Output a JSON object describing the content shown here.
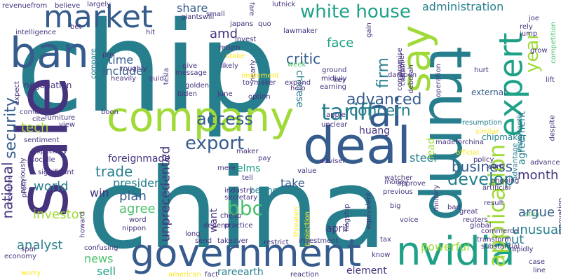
{
  "colors": {
    "background": "#ffffff",
    "palette": [
      "#440154",
      "#46337e",
      "#365c8d",
      "#277f8e",
      "#1fa187",
      "#4ac16d",
      "#a0da39",
      "#fde725"
    ]
  },
  "words": [
    {
      "text": "chip",
      "color": "#277f8e",
      "vertical": false
    },
    {
      "text": "china",
      "color": "#277f8e",
      "vertical": false
    },
    {
      "text": "sale",
      "color": "#46337e",
      "vertical": true
    },
    {
      "text": "trump",
      "color": "#277f8e",
      "vertical": true
    },
    {
      "text": "company",
      "color": "#a0da39",
      "vertical": false
    },
    {
      "text": "government",
      "color": "#365c8d",
      "vertical": false
    },
    {
      "text": "deal",
      "color": "#365c8d",
      "vertical": false
    },
    {
      "text": "nvidia",
      "color": "#1fa187",
      "vertical": false
    },
    {
      "text": "ban",
      "color": "#365c8d",
      "vertical": false
    },
    {
      "text": "market",
      "color": "#365c8d",
      "vertical": false
    },
    {
      "text": "say",
      "color": "#a0da39",
      "vertical": true
    },
    {
      "text": "ai",
      "color": "#365c8d",
      "vertical": false
    },
    {
      "text": "expert",
      "color": "#1fa187",
      "vertical": true
    },
    {
      "text": "application",
      "color": "#a0da39",
      "vertical": true
    },
    {
      "text": "white house",
      "color": "#1fa187",
      "vertical": false
    },
    {
      "text": "tariff",
      "color": "#277f8e",
      "vertical": false
    },
    {
      "text": "develop",
      "color": "#277f8e",
      "vertical": false
    },
    {
      "text": "security",
      "color": "#365c8d",
      "vertical": true
    },
    {
      "text": "national",
      "color": "#46337e",
      "vertical": true
    },
    {
      "text": "export",
      "color": "#365c8d",
      "vertical": false
    },
    {
      "text": "access",
      "color": "#365c8d",
      "vertical": false
    },
    {
      "text": "advanced",
      "color": "#365c8d",
      "vertical": false
    },
    {
      "text": "concern",
      "color": "#277f8e",
      "vertical": false
    },
    {
      "text": "firm",
      "color": "#277f8e",
      "vertical": true
    },
    {
      "text": "bbc",
      "color": "#4ac16d",
      "vertical": false
    },
    {
      "text": "business",
      "color": "#365c8d",
      "vertical": false
    },
    {
      "text": "year",
      "color": "#a0da39",
      "vertical": true
    },
    {
      "text": "unprecedented",
      "color": "#46337e",
      "vertical": true
    },
    {
      "text": "critic",
      "color": "#365c8d",
      "vertical": false
    },
    {
      "text": "trade",
      "color": "#277f8e",
      "vertical": false
    },
    {
      "text": "administration",
      "color": "#277f8e",
      "vertical": false
    },
    {
      "text": "amd",
      "color": "#46337e",
      "vertical": false
    },
    {
      "text": "share",
      "color": "#365c8d",
      "vertical": false
    },
    {
      "text": "plan",
      "color": "#365c8d",
      "vertical": false
    },
    {
      "text": "agree",
      "color": "#4ac16d",
      "vertical": false
    },
    {
      "text": "argue",
      "color": "#365c8d",
      "vertical": false
    },
    {
      "text": "unusual",
      "color": "#277f8e",
      "vertical": false
    },
    {
      "text": "analyst",
      "color": "#277f8e",
      "vertical": false
    },
    {
      "text": "month",
      "color": "#46337e",
      "vertical": false
    },
    {
      "text": "agreement",
      "color": "#277f8e",
      "vertical": true
    },
    {
      "text": "cut",
      "color": "#277f8e",
      "vertical": false
    },
    {
      "text": "world",
      "color": "#277f8e",
      "vertical": false
    },
    {
      "text": "investor",
      "color": "#a0da39",
      "vertical": false
    },
    {
      "text": "tech",
      "color": "#a0da39",
      "vertical": false
    },
    {
      "text": "face",
      "color": "#1fa187",
      "vertical": false
    },
    {
      "text": "chinese",
      "color": "#277f8e",
      "vertical": true
    },
    {
      "text": "time",
      "color": "#365c8d",
      "vertical": false
    },
    {
      "text": "include",
      "color": "#365c8d",
      "vertical": false
    },
    {
      "text": "steel",
      "color": "#277f8e",
      "vertical": false
    },
    {
      "text": "take",
      "color": "#365c8d",
      "vertical": false
    },
    {
      "text": "president",
      "color": "#277f8e",
      "vertical": false
    },
    {
      "text": "news",
      "color": "#4ac16d",
      "vertical": false
    },
    {
      "text": "sell",
      "color": "#1fa187",
      "vertical": false
    },
    {
      "text": "powerful",
      "color": "#a0da39",
      "vertical": false
    },
    {
      "text": "lead",
      "color": "#a0da39",
      "vertical": true
    },
    {
      "text": "win",
      "color": "#46337e",
      "vertical": false
    },
    {
      "text": "rareearth",
      "color": "#277f8e",
      "vertical": false
    },
    {
      "text": "element",
      "color": "#46337e",
      "vertical": false
    },
    {
      "text": "elms",
      "color": "#1fa187",
      "vertical": false
    },
    {
      "text": "want",
      "color": "#46337e",
      "vertical": true
    },
    {
      "text": "huang",
      "color": "#46337e",
      "vertical": false
    },
    {
      "text": "april",
      "color": "#46337e",
      "vertical": false
    },
    {
      "text": "foreignmade",
      "color": "#46337e",
      "vertical": false
    },
    {
      "text": "negotiation",
      "color": "#46337e",
      "vertical": false
    },
    {
      "text": "beijing",
      "color": "#277f8e",
      "vertical": false
    },
    {
      "text": "external",
      "color": "#365c8d",
      "vertical": false
    },
    {
      "text": "chipmaker",
      "color": "#277f8e",
      "vertical": false
    },
    {
      "text": "resumption",
      "color": "#277f8e",
      "vertical": false
    },
    {
      "text": "madeforchina",
      "color": "#46337e",
      "vertical": false
    },
    {
      "text": "advantage",
      "color": "#277f8e",
      "vertical": true
    },
    {
      "text": "importantly",
      "color": "#277f8e",
      "vertical": true
    },
    {
      "text": "revenuefrom",
      "color": "#46337e",
      "vertical": false
    },
    {
      "text": "believe",
      "color": "#46337e",
      "vertical": false
    },
    {
      "text": "largely",
      "color": "#46337e",
      "vertical": false
    },
    {
      "text": "intelligence",
      "color": "#46337e",
      "vertical": false
    },
    {
      "text": "giantswill",
      "color": "#46337e",
      "vertical": false
    },
    {
      "text": "japans",
      "color": "#46337e",
      "vertical": false
    },
    {
      "text": "lawmaker",
      "color": "#46337e",
      "vertical": false
    },
    {
      "text": "lutnick",
      "color": "#46337e",
      "vertical": false
    },
    {
      "text": "small",
      "color": "#46337e",
      "vertical": false
    },
    {
      "text": "fare",
      "color": "#46337e",
      "vertical": true
    },
    {
      "text": "quo",
      "color": "#46337e",
      "vertical": false
    },
    {
      "text": "joe",
      "color": "#46337e",
      "vertical": false
    },
    {
      "text": "rely",
      "color": "#46337e",
      "vertical": false
    },
    {
      "text": "jump",
      "color": "#46337e",
      "vertical": false
    },
    {
      "text": "competition",
      "color": "#4ac16d",
      "vertical": true
    },
    {
      "text": "bet",
      "color": "#46337e",
      "vertical": false
    },
    {
      "text": "hit",
      "color": "#46337e",
      "vertical": false
    },
    {
      "text": "invest",
      "color": "#46337e",
      "vertical": false
    },
    {
      "text": "return",
      "color": "#46337e",
      "vertical": false
    },
    {
      "text": "compare",
      "color": "#277f8e",
      "vertical": true
    },
    {
      "text": "pro",
      "color": "#46337e",
      "vertical": false
    },
    {
      "text": "roughly",
      "color": "#46337e",
      "vertical": false
    },
    {
      "text": "heavily",
      "color": "#46337e",
      "vertical": false
    },
    {
      "text": "quid",
      "color": "#46337e",
      "vertical": false
    },
    {
      "text": "stake",
      "color": "#fde725",
      "vertical": false
    },
    {
      "text": "likely",
      "color": "#46337e",
      "vertical": false
    },
    {
      "text": "nearly",
      "color": "#46337e",
      "vertical": true
    },
    {
      "text": "week",
      "color": "#4ac16d",
      "vertical": false
    },
    {
      "text": "ground",
      "color": "#46337e",
      "vertical": false
    },
    {
      "text": "midjuly",
      "color": "#46337e",
      "vertical": false
    },
    {
      "text": "earning",
      "color": "#46337e",
      "vertical": false
    },
    {
      "text": "gain",
      "color": "#46337e",
      "vertical": true
    },
    {
      "text": "supplier",
      "color": "#46337e",
      "vertical": true
    },
    {
      "text": "compromise",
      "color": "#46337e",
      "vertical": true
    },
    {
      "text": "grow",
      "color": "#46337e",
      "vertical": false
    },
    {
      "text": "give",
      "color": "#46337e",
      "vertical": false
    },
    {
      "text": "message",
      "color": "#46337e",
      "vertical": false
    },
    {
      "text": "implement",
      "color": "#fde725",
      "vertical": false
    },
    {
      "text": "toymaker",
      "color": "#46337e",
      "vertical": false
    },
    {
      "text": "expand",
      "color": "#46337e",
      "vertical": false
    },
    {
      "text": "help",
      "color": "#46337e",
      "vertical": false
    },
    {
      "text": "key",
      "color": "#46337e",
      "vertical": false
    },
    {
      "text": "dampen",
      "color": "#46337e",
      "vertical": false
    },
    {
      "text": "certain",
      "color": "#46337e",
      "vertical": true
    },
    {
      "text": "deborah",
      "color": "#46337e",
      "vertical": true
    },
    {
      "text": "operation",
      "color": "#46337e",
      "vertical": true
    },
    {
      "text": "hurt",
      "color": "#46337e",
      "vertical": false
    },
    {
      "text": "lift",
      "color": "#46337e",
      "vertical": false
    },
    {
      "text": "golden",
      "color": "#46337e",
      "vertical": false
    },
    {
      "text": "biden",
      "color": "#46337e",
      "vertical": false
    },
    {
      "text": "june",
      "color": "#46337e",
      "vertical": false
    },
    {
      "text": "tesla",
      "color": "#46337e",
      "vertical": true
    },
    {
      "text": "option",
      "color": "#46337e",
      "vertical": false
    },
    {
      "text": "come",
      "color": "#46337e",
      "vertical": false
    },
    {
      "text": "cite",
      "color": "#46337e",
      "vertical": false
    },
    {
      "text": "furniture",
      "color": "#46337e",
      "vertical": false
    },
    {
      "text": "view",
      "color": "#46337e",
      "vertical": false
    },
    {
      "text": "boon",
      "color": "#46337e",
      "vertical": false
    },
    {
      "text": "unclear",
      "color": "#46337e",
      "vertical": false
    },
    {
      "text": "apple",
      "color": "#46337e",
      "vertical": false
    },
    {
      "text": "similar",
      "color": "#fde725",
      "vertical": false
    },
    {
      "text": "despite",
      "color": "#46337e",
      "vertical": true
    },
    {
      "text": "expect",
      "color": "#46337e",
      "vertical": true
    },
    {
      "text": "sentiment",
      "color": "#46337e",
      "vertical": false
    },
    {
      "text": "especially",
      "color": "#46337e",
      "vertical": false
    },
    {
      "text": "socalle",
      "color": "#46337e",
      "vertical": false
    },
    {
      "text": "significant",
      "color": "#46337e",
      "vertical": false
    },
    {
      "text": "previously",
      "color": "#46337e",
      "vertical": true
    },
    {
      "text": "profit",
      "color": "#46337e",
      "vertical": true
    },
    {
      "text": "revenue",
      "color": "#46337e",
      "vertical": true
    },
    {
      "text": "pay",
      "color": "#46337e",
      "vertical": false
    },
    {
      "text": "value",
      "color": "#46337e",
      "vertical": false
    },
    {
      "text": "adviser",
      "color": "#46337e",
      "vertical": false
    },
    {
      "text": "official",
      "color": "#fde725",
      "vertical": false
    },
    {
      "text": "earn",
      "color": "#46337e",
      "vertical": false
    },
    {
      "text": "advance",
      "color": "#46337e",
      "vertical": false
    },
    {
      "text": "policy",
      "color": "#46337e",
      "vertical": false
    },
    {
      "text": "watcher",
      "color": "#46337e",
      "vertical": false
    },
    {
      "text": "approve",
      "color": "#46337e",
      "vertical": false
    },
    {
      "text": "big",
      "color": "#46337e",
      "vertical": false
    },
    {
      "text": "maker",
      "color": "#46337e",
      "vertical": false
    },
    {
      "text": "tell",
      "color": "#46337e",
      "vertical": false
    },
    {
      "text": "mere",
      "color": "#46337e",
      "vertical": false
    },
    {
      "text": "artificial",
      "color": "#46337e",
      "vertical": false
    },
    {
      "text": "ongoing",
      "color": "#46337e",
      "vertical": false
    },
    {
      "text": "industry",
      "color": "#46337e",
      "vertical": false
    },
    {
      "text": "secretary",
      "color": "#46337e",
      "vertical": false
    },
    {
      "text": "money",
      "color": "#46337e",
      "vertical": false
    },
    {
      "text": "previous",
      "color": "#46337e",
      "vertical": false
    },
    {
      "text": "military",
      "color": "#46337e",
      "vertical": true
    },
    {
      "text": "bad",
      "color": "#46337e",
      "vertical": false
    },
    {
      "text": "great",
      "color": "#46337e",
      "vertical": false
    },
    {
      "text": "reuters",
      "color": "#46337e",
      "vertical": false
    },
    {
      "text": "step",
      "color": "#4ac16d",
      "vertical": false
    },
    {
      "text": "innovation",
      "color": "#46337e",
      "vertical": true
    },
    {
      "text": "word",
      "color": "#46337e",
      "vertical": false
    },
    {
      "text": "nippon",
      "color": "#46337e",
      "vertical": false
    },
    {
      "text": "howard",
      "color": "#46337e",
      "vertical": true
    },
    {
      "text": "depend",
      "color": "#46337e",
      "vertical": false
    },
    {
      "text": "cheap",
      "color": "#46337e",
      "vertical": false
    },
    {
      "text": "practice",
      "color": "#46337e",
      "vertical": false
    },
    {
      "text": "threaten",
      "color": "#fde725",
      "vertical": true
    },
    {
      "text": "projection",
      "color": "#fde725",
      "vertical": true
    },
    {
      "text": "flagship",
      "color": "#46337e",
      "vertical": true
    },
    {
      "text": "equivalent",
      "color": "#46337e",
      "vertical": true
    },
    {
      "text": "voice",
      "color": "#46337e",
      "vertical": false
    },
    {
      "text": "global",
      "color": "#46337e",
      "vertical": false
    },
    {
      "text": "commerce",
      "color": "#46337e",
      "vertical": false
    },
    {
      "text": "transform",
      "color": "#46337e",
      "vertical": false
    },
    {
      "text": "substantial",
      "color": "#46337e",
      "vertical": false
    },
    {
      "text": "rapidly",
      "color": "#46337e",
      "vertical": false
    },
    {
      "text": "spur",
      "color": "#46337e",
      "vertical": false
    },
    {
      "text": "economy",
      "color": "#46337e",
      "vertical": false
    },
    {
      "text": "worry",
      "color": "#fde725",
      "vertical": false
    },
    {
      "text": "confusing",
      "color": "#46337e",
      "vertical": false
    },
    {
      "text": "long",
      "color": "#46337e",
      "vertical": false
    },
    {
      "text": "send",
      "color": "#46337e",
      "vertical": false
    },
    {
      "text": "takeover",
      "color": "#46337e",
      "vertical": false
    },
    {
      "text": "restrict",
      "color": "#46337e",
      "vertical": false
    },
    {
      "text": "investment",
      "color": "#46337e",
      "vertical": false
    },
    {
      "text": "tax",
      "color": "#46337e",
      "vertical": false
    },
    {
      "text": "know",
      "color": "#46337e",
      "vertical": false
    },
    {
      "text": "case",
      "color": "#46337e",
      "vertical": false
    },
    {
      "text": "line",
      "color": "#46337e",
      "vertical": false
    },
    {
      "text": "american",
      "color": "#fde725",
      "vertical": false
    },
    {
      "text": "fact",
      "color": "#46337e",
      "vertical": false
    },
    {
      "text": "reaction",
      "color": "#46337e",
      "vertical": false
    },
    {
      "text": "result",
      "color": "#46337e",
      "vertical": false
    }
  ]
}
